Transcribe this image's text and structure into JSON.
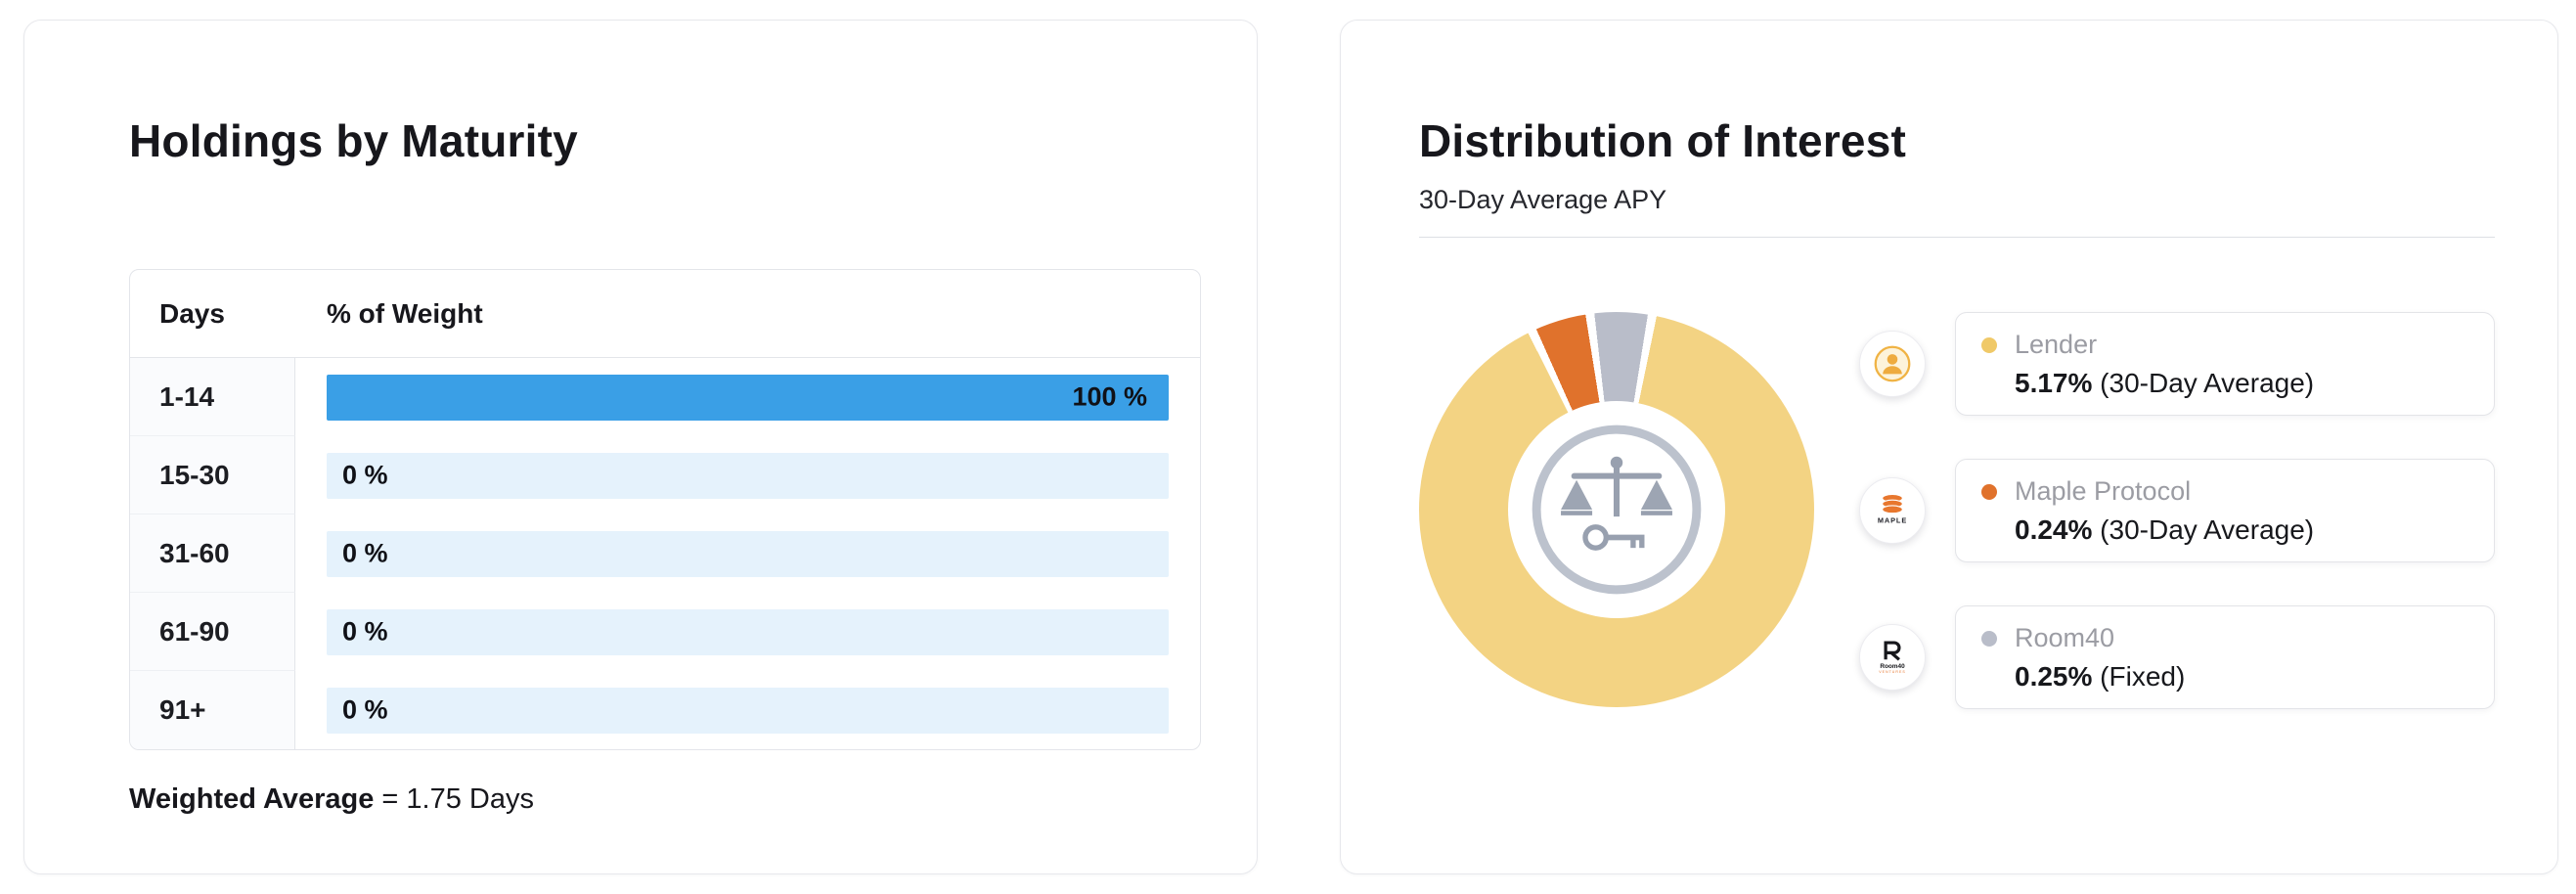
{
  "holdings_card": {
    "title": "Holdings by Maturity",
    "table": {
      "columns": [
        "Days",
        "% of Weight"
      ],
      "rows": [
        {
          "days": "1-14",
          "weight": "100 %"
        },
        {
          "days": "15-30",
          "weight": "0 %"
        },
        {
          "days": "31-60",
          "weight": "0 %"
        },
        {
          "days": "61-90",
          "weight": "0 %"
        },
        {
          "days": "91+",
          "weight": "0 %"
        }
      ]
    },
    "footer": {
      "label": "Weighted Average",
      "rest": " = 1.75 Days"
    }
  },
  "interest_card": {
    "title": "Distribution of Interest",
    "subtitle": "30-Day Average APY",
    "legend": [
      {
        "name": "Lender",
        "rate": "5.17%",
        "suffix": " (30-Day Average)",
        "color": "#f0c968",
        "icon": "lender-person-icon"
      },
      {
        "name": "Maple Protocol",
        "rate": "0.24%",
        "suffix": " (30-Day Average)",
        "color": "#e0722c",
        "icon": "maple-protocol-icon"
      },
      {
        "name": "Room40",
        "rate": "0.25%",
        "suffix": " (Fixed)",
        "color": "#b9bdc9",
        "icon": "room40-icon"
      }
    ]
  },
  "chart_data": [
    {
      "type": "bar",
      "title": "Holdings by Maturity",
      "orientation": "horizontal",
      "categories": [
        "1-14",
        "15-30",
        "31-60",
        "61-90",
        "91+"
      ],
      "values": [
        100,
        0,
        0,
        0,
        0
      ],
      "xlabel": "Days",
      "ylabel": "% of Weight",
      "xlim": [
        0,
        100
      ],
      "bar_color": "#3a9fe6",
      "track_color": "#e5f2fc",
      "weighted_average_days": 1.75
    },
    {
      "type": "pie",
      "subtype": "donut",
      "title": "Distribution of Interest",
      "subtitle": "30-Day Average APY",
      "labels": [
        "Maple Protocol",
        "Room40",
        "Lender"
      ],
      "values": [
        0.24,
        0.25,
        5.17
      ],
      "colors": [
        "#e0722c",
        "#b9bdc9",
        "#f3d383"
      ],
      "start_angle_deg": 336,
      "legend_position": "right"
    }
  ]
}
